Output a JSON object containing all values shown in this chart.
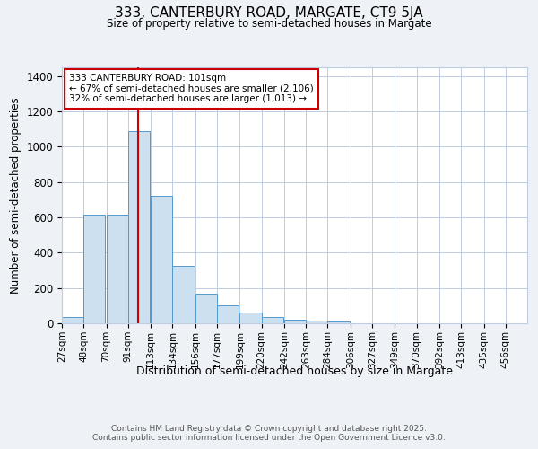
{
  "title": "333, CANTERBURY ROAD, MARGATE, CT9 5JA",
  "subtitle": "Size of property relative to semi-detached houses in Margate",
  "xlabel": "Distribution of semi-detached houses by size in Margate",
  "ylabel": "Number of semi-detached properties",
  "bin_labels": [
    "27sqm",
    "48sqm",
    "70sqm",
    "91sqm",
    "113sqm",
    "134sqm",
    "156sqm",
    "177sqm",
    "199sqm",
    "220sqm",
    "242sqm",
    "263sqm",
    "284sqm",
    "306sqm",
    "327sqm",
    "349sqm",
    "370sqm",
    "392sqm",
    "413sqm",
    "435sqm",
    "456sqm"
  ],
  "bin_edges": [
    27,
    48,
    70,
    91,
    113,
    134,
    156,
    177,
    199,
    220,
    242,
    263,
    284,
    306,
    327,
    349,
    370,
    392,
    413,
    435,
    456
  ],
  "bar_heights": [
    35,
    615,
    615,
    1090,
    720,
    325,
    170,
    100,
    60,
    35,
    20,
    15,
    10,
    0,
    0,
    0,
    0,
    0,
    0,
    0
  ],
  "bar_color": "#cce0f0",
  "bar_edge_color": "#5599cc",
  "vline_x": 101,
  "vline_color": "#cc0000",
  "annotation_line1": "333 CANTERBURY ROAD: 101sqm",
  "annotation_line2": "← 67% of semi-detached houses are smaller (2,106)",
  "annotation_line3": "32% of semi-detached houses are larger (1,013) →",
  "annotation_box_color": "#ffffff",
  "annotation_box_edge_color": "#cc0000",
  "ylim": [
    0,
    1450
  ],
  "yticks": [
    0,
    200,
    400,
    600,
    800,
    1000,
    1200,
    1400
  ],
  "footer_text": "Contains HM Land Registry data © Crown copyright and database right 2025.\nContains public sector information licensed under the Open Government Licence v3.0.",
  "bg_color": "#eef2f7",
  "plot_bg_color": "#ffffff",
  "grid_color": "#c0cce0"
}
